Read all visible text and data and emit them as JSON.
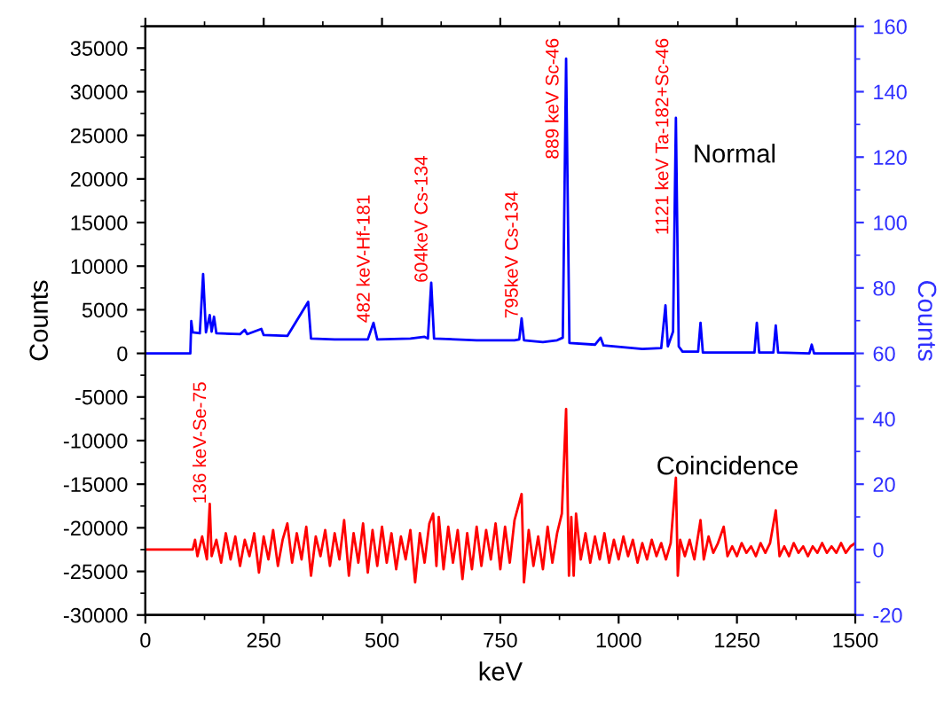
{
  "chart_data": {
    "type": "line",
    "xlabel": "keV",
    "ylabel": "Counts",
    "y2label": "Counts",
    "xlim": [
      0,
      1500
    ],
    "xticks": [
      0,
      250,
      500,
      750,
      1000,
      1250,
      1500
    ],
    "ylim": [
      -30000,
      37500
    ],
    "yticks": [
      -30000,
      -25000,
      -20000,
      -15000,
      -10000,
      -5000,
      0,
      5000,
      10000,
      15000,
      20000,
      25000,
      30000,
      35000
    ],
    "y2lim": [
      -20,
      160
    ],
    "y2ticks": [
      -20,
      0,
      20,
      40,
      60,
      80,
      100,
      120,
      140,
      160
    ],
    "grid": false,
    "legend": false,
    "series": [
      {
        "name": "Normal",
        "color": "#0000ff",
        "x": [
          0,
          95,
          97,
          100,
          115,
          122,
          128,
          136,
          140,
          145,
          150,
          200,
          210,
          215,
          245,
          250,
          300,
          344,
          350,
          400,
          470,
          482,
          490,
          560,
          590,
          597,
          604,
          610,
          700,
          780,
          790,
          795,
          800,
          840,
          870,
          882,
          889,
          896,
          950,
          962,
          968,
          1050,
          1090,
          1099,
          1104,
          1115,
          1121,
          1127,
          1135,
          1168,
          1173,
          1178,
          1287,
          1292,
          1297,
          1327,
          1332,
          1337,
          1403,
          1408,
          1413,
          1500
        ],
        "values": [
          0,
          0,
          3700,
          2400,
          2300,
          9100,
          2400,
          4400,
          2500,
          4200,
          2300,
          2200,
          2700,
          2200,
          2800,
          2100,
          2000,
          5900,
          1700,
          1600,
          1600,
          3500,
          1600,
          1700,
          1900,
          1700,
          8100,
          1700,
          1500,
          1500,
          1600,
          4000,
          1500,
          1300,
          1500,
          1800,
          33800,
          1200,
          1000,
          1800,
          900,
          500,
          600,
          5500,
          800,
          2500,
          27000,
          800,
          200,
          200,
          3500,
          100,
          100,
          3500,
          100,
          100,
          3200,
          100,
          0,
          1000,
          0,
          0
        ]
      },
      {
        "name": "Coincidence",
        "color": "#ff0000",
        "axis": "y2",
        "x": [
          0,
          100,
          105,
          110,
          120,
          130,
          136,
          140,
          150,
          160,
          170,
          180,
          190,
          200,
          210,
          220,
          230,
          240,
          250,
          260,
          270,
          280,
          290,
          300,
          310,
          320,
          330,
          340,
          350,
          360,
          370,
          380,
          390,
          400,
          410,
          420,
          430,
          440,
          450,
          460,
          470,
          480,
          490,
          500,
          510,
          520,
          530,
          540,
          550,
          560,
          570,
          580,
          590,
          600,
          608,
          615,
          620,
          630,
          640,
          650,
          660,
          670,
          680,
          690,
          700,
          710,
          720,
          730,
          740,
          750,
          760,
          770,
          780,
          795,
          800,
          810,
          820,
          830,
          840,
          850,
          860,
          870,
          880,
          889,
          895,
          900,
          905,
          910,
          920,
          930,
          940,
          950,
          960,
          970,
          980,
          990,
          1000,
          1010,
          1020,
          1030,
          1040,
          1050,
          1060,
          1070,
          1080,
          1090,
          1100,
          1110,
          1121,
          1125,
          1130,
          1140,
          1150,
          1160,
          1173,
          1180,
          1190,
          1200,
          1210,
          1222,
          1230,
          1240,
          1250,
          1260,
          1270,
          1280,
          1290,
          1300,
          1310,
          1320,
          1332,
          1340,
          1350,
          1360,
          1370,
          1380,
          1390,
          1400,
          1410,
          1420,
          1430,
          1440,
          1450,
          1460,
          1470,
          1480,
          1490,
          1500
        ],
        "values": [
          0,
          0,
          3,
          -2,
          4,
          -3,
          14,
          -2,
          3,
          -4,
          5,
          -3,
          4,
          -5,
          3,
          -2,
          5,
          -7,
          4,
          -3,
          6,
          -5,
          3,
          8,
          -4,
          5,
          -3,
          7,
          -8,
          4,
          -2,
          6,
          -5,
          5,
          -3,
          9,
          -8,
          5,
          -4,
          8,
          -7,
          6,
          -5,
          7,
          -4,
          5,
          -6,
          4,
          -3,
          6,
          -10,
          5,
          -4,
          8,
          11,
          -5,
          10,
          -6,
          7,
          -4,
          6,
          -9,
          5,
          -6,
          7,
          -5,
          6,
          -3,
          8,
          -6,
          7,
          -4,
          9,
          17,
          -10,
          6,
          -5,
          4,
          -6,
          7,
          -4,
          5,
          11,
          43,
          -8,
          10,
          -8,
          11,
          -3,
          5,
          -4,
          4,
          -3,
          5,
          -4,
          3,
          -3,
          4,
          -2,
          3,
          -4,
          2,
          -3,
          3,
          -2,
          2,
          -3,
          2,
          22,
          -8,
          3,
          -2,
          3,
          -3,
          9,
          -3,
          4,
          -1,
          2,
          7,
          -2,
          1,
          -2,
          2,
          -1,
          1,
          -2,
          2,
          -1,
          2,
          12,
          -2,
          1,
          -2,
          2,
          -1,
          1,
          -2,
          1,
          -1,
          2,
          -1,
          1,
          -1,
          2,
          -1,
          1,
          2
        ]
      }
    ],
    "annotations": [
      {
        "text": "482 keV-Hf-181",
        "x": 482,
        "y": 3500
      },
      {
        "text": "604keV Cs-134",
        "x": 604,
        "y": 8100
      },
      {
        "text": "795keV Cs-134",
        "x": 795,
        "y": 4000
      },
      {
        "text": "889 keV Sc-46",
        "x": 889,
        "y": 33800
      },
      {
        "text": "1121 keV Ta-182+Sc-46",
        "x": 1121,
        "y": 27000
      },
      {
        "text": "136 keV-Se-75",
        "x": 136,
        "y": -17250
      }
    ]
  }
}
